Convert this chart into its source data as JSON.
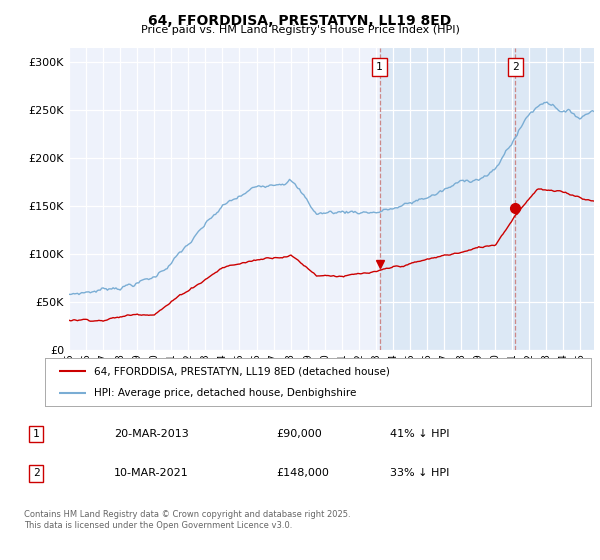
{
  "title": "64, FFORDDISA, PRESTATYN, LL19 8ED",
  "subtitle": "Price paid vs. HM Land Registry's House Price Index (HPI)",
  "ylabel_ticks": [
    "£0",
    "£50K",
    "£100K",
    "£150K",
    "£200K",
    "£250K",
    "£300K"
  ],
  "ytick_values": [
    0,
    50000,
    100000,
    150000,
    200000,
    250000,
    300000
  ],
  "ylim": [
    0,
    315000
  ],
  "xlim_start": 1995.0,
  "xlim_end": 2025.8,
  "hpi_color": "#7aadd4",
  "price_color": "#cc0000",
  "marker1_x": 2013.22,
  "marker1_y": 90000,
  "marker2_x": 2021.19,
  "marker2_y": 148000,
  "vline1_x": 2013.22,
  "vline2_x": 2021.19,
  "shade_color": "#dce8f5",
  "legend_entry1": "64, FFORDDISA, PRESTATYN, LL19 8ED (detached house)",
  "legend_entry2": "HPI: Average price, detached house, Denbighshire",
  "table_row1": [
    "1",
    "20-MAR-2013",
    "£90,000",
    "41% ↓ HPI"
  ],
  "table_row2": [
    "2",
    "10-MAR-2021",
    "£148,000",
    "33% ↓ HPI"
  ],
  "footer": "Contains HM Land Registry data © Crown copyright and database right 2025.\nThis data is licensed under the Open Government Licence v3.0.",
  "background_color": "#eef2fb",
  "grid_color": "#ffffff"
}
